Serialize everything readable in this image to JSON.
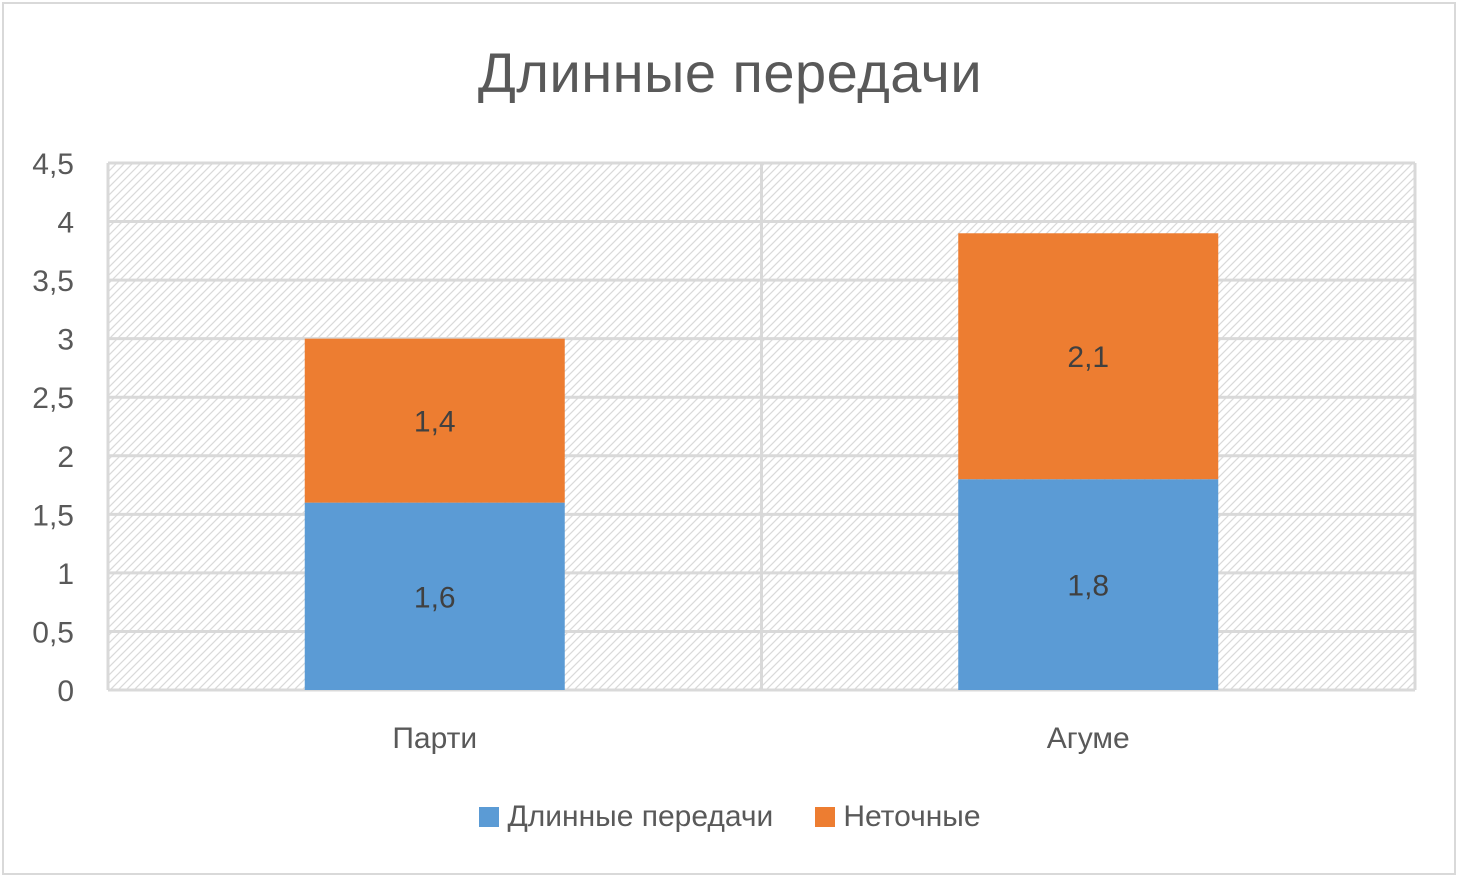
{
  "chart_data": {
    "type": "bar",
    "stacked": true,
    "title": "Длинные передачи",
    "categories": [
      "Парти",
      "Агуме"
    ],
    "series": [
      {
        "name": "Длинные передачи",
        "values": [
          1.6,
          1.8
        ],
        "labels": [
          "1,6",
          "1,8"
        ],
        "color": "#5b9bd5"
      },
      {
        "name": "Неточные",
        "values": [
          1.4,
          2.1
        ],
        "labels": [
          "1,4",
          "2,1"
        ],
        "color": "#ed7d31"
      }
    ],
    "ylim": [
      0,
      4.5
    ],
    "yticks": [
      "0",
      "0,5",
      "1",
      "1,5",
      "2",
      "2,5",
      "3",
      "3,5",
      "4",
      "4,5"
    ],
    "grid": true,
    "legend_position": "bottom",
    "plot_background": "hatched"
  }
}
